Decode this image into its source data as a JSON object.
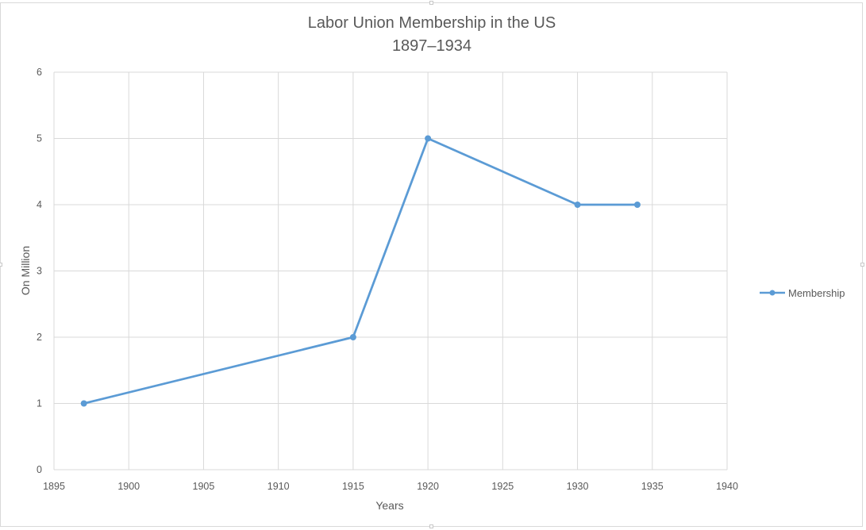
{
  "chart_data": {
    "type": "scatter",
    "title": "Labor Union Membership in the US",
    "subtitle": "1897–1934",
    "xlabel": "Years",
    "ylabel": "On Million",
    "xlim": [
      1895,
      1940
    ],
    "ylim": [
      0,
      6
    ],
    "x_ticks": [
      1895,
      1900,
      1905,
      1910,
      1915,
      1920,
      1925,
      1930,
      1935,
      1940
    ],
    "y_ticks": [
      0,
      1,
      2,
      3,
      4,
      5,
      6
    ],
    "grid": true,
    "legend_position": "right",
    "series": [
      {
        "name": "Membership",
        "color": "#5b9bd5",
        "marker": "circle",
        "line": "straight",
        "x": [
          1897,
          1915,
          1920,
          1930,
          1934
        ],
        "y": [
          1,
          2,
          5,
          4,
          4
        ]
      }
    ]
  }
}
